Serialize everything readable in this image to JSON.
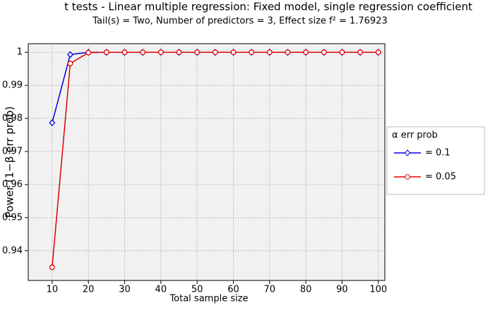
{
  "chart_data": {
    "type": "line",
    "title": "t tests - Linear multiple regression: Fixed model, single regression coefficient",
    "subtitle": "Tail(s) = Two, Number of predictors = 3, Effect size f² = 1.76923",
    "x_label": "Total sample size",
    "y_label": "Power (1−β err prob)",
    "legend_title": "α err prob",
    "legend_position": "right",
    "x": [
      10,
      15,
      20,
      25,
      30,
      35,
      40,
      45,
      50,
      55,
      60,
      65,
      70,
      75,
      80,
      85,
      90,
      95,
      100
    ],
    "series": [
      {
        "name": "= 0.1",
        "color": "#0000e0",
        "marker": "diamond",
        "values": [
          0.9787,
          0.9993,
          1,
          1,
          1,
          1,
          1,
          1,
          1,
          1,
          1,
          1,
          1,
          1,
          1,
          1,
          1,
          1,
          1
        ]
      },
      {
        "name": "= 0.05",
        "color": "#e00000",
        "marker": "circle",
        "values": [
          0.935,
          0.9966,
          0.9999,
          1,
          1,
          1,
          1,
          1,
          1,
          1,
          1,
          1,
          1,
          1,
          1,
          1,
          1,
          1,
          1
        ]
      }
    ],
    "xlim": [
      3.4,
      101.8
    ],
    "xticks": [
      10,
      20,
      30,
      40,
      50,
      60,
      70,
      80,
      90,
      100
    ],
    "ylim": [
      0.931,
      1.0026
    ],
    "yticks": [
      0.94,
      0.95,
      0.96,
      0.97,
      0.98,
      0.99,
      1
    ],
    "grid": true
  }
}
